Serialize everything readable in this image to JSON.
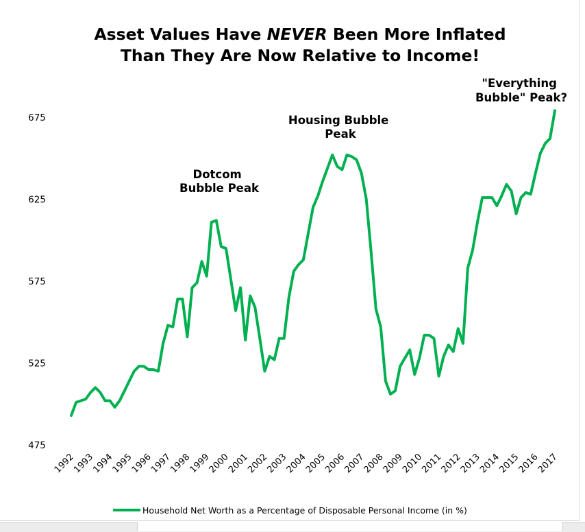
{
  "chart_data": {
    "type": "line",
    "title_lines": [
      {
        "pre": "Asset Values Have ",
        "em": "NEVER",
        "post": " Been More Inflated"
      },
      {
        "pre": "Than They Are Now Relative to Income!",
        "em": "",
        "post": ""
      }
    ],
    "xlabel": "",
    "ylabel": "",
    "xlim": [
      1992,
      2017
    ],
    "ylim": [
      475,
      690
    ],
    "y_ticks": [
      475,
      525,
      575,
      625,
      675
    ],
    "x_ticks": [
      "1992",
      "1993",
      "1994",
      "1995",
      "1996",
      "1997",
      "1998",
      "1999",
      "2000",
      "2001",
      "2002",
      "2003",
      "2004",
      "2005",
      "2006",
      "2007",
      "2008",
      "2009",
      "2010",
      "2011",
      "2012",
      "2013",
      "2014",
      "2015",
      "2016",
      "2017"
    ],
    "grid": false,
    "legend_position": "bottom",
    "series": [
      {
        "name": "Household Net Worth as a Percentage of Disposable Personal Income (in %)",
        "color": "#00b050",
        "x": [
          1992.0,
          1992.25,
          1992.5,
          1992.75,
          1993.0,
          1993.25,
          1993.5,
          1993.75,
          1994.0,
          1994.25,
          1994.5,
          1994.75,
          1995.0,
          1995.25,
          1995.5,
          1995.75,
          1996.0,
          1996.25,
          1996.5,
          1996.75,
          1997.0,
          1997.25,
          1997.5,
          1997.75,
          1998.0,
          1998.25,
          1998.5,
          1998.75,
          1999.0,
          1999.25,
          1999.5,
          1999.75,
          2000.0,
          2000.25,
          2000.5,
          2000.75,
          2001.0,
          2001.25,
          2001.5,
          2001.75,
          2002.0,
          2002.25,
          2002.5,
          2002.75,
          2003.0,
          2003.25,
          2003.5,
          2003.75,
          2004.0,
          2004.25,
          2004.5,
          2004.75,
          2005.0,
          2005.25,
          2005.5,
          2005.75,
          2006.0,
          2006.25,
          2006.5,
          2006.75,
          2007.0,
          2007.25,
          2007.5,
          2007.75,
          2008.0,
          2008.25,
          2008.5,
          2008.75,
          2009.0,
          2009.25,
          2009.5,
          2009.75,
          2010.0,
          2010.25,
          2010.5,
          2010.75,
          2011.0,
          2011.25,
          2011.5,
          2011.75,
          2012.0,
          2012.25,
          2012.5,
          2012.75,
          2013.0,
          2013.25,
          2013.5,
          2013.75,
          2014.0,
          2014.25,
          2014.5,
          2014.75,
          2015.0,
          2015.25,
          2015.5,
          2015.75,
          2016.0,
          2016.25,
          2016.5,
          2016.75,
          2017.0
        ],
        "values": [
          493,
          501,
          502,
          503,
          507,
          510,
          507,
          502,
          502,
          498,
          502,
          508,
          514,
          520,
          523,
          523,
          521,
          521,
          520,
          537,
          548,
          547,
          564,
          564,
          541,
          571,
          574,
          587,
          578,
          611,
          612,
          596,
          595,
          576,
          557,
          571,
          539,
          566,
          559,
          540,
          520,
          529,
          527,
          540,
          540,
          565,
          581,
          585,
          588,
          604,
          620,
          627,
          636,
          644,
          652,
          645,
          643,
          652,
          651,
          649,
          641,
          625,
          593,
          558,
          547,
          514,
          506,
          508,
          523,
          528,
          533,
          518,
          528,
          542,
          542,
          540,
          517,
          529,
          536,
          532,
          546,
          537,
          583,
          594,
          611,
          626,
          626,
          626,
          621,
          627,
          634,
          630,
          616,
          626,
          629,
          628,
          641,
          653,
          659,
          662,
          679
        ]
      }
    ],
    "annotations": [
      {
        "lines": [
          "Dotcom",
          "Bubble Peak"
        ]
      },
      {
        "lines": [
          "Housing Bubble",
          "Peak"
        ]
      },
      {
        "lines": [
          "\"Everything",
          "Bubble\" Peak?"
        ]
      }
    ]
  }
}
